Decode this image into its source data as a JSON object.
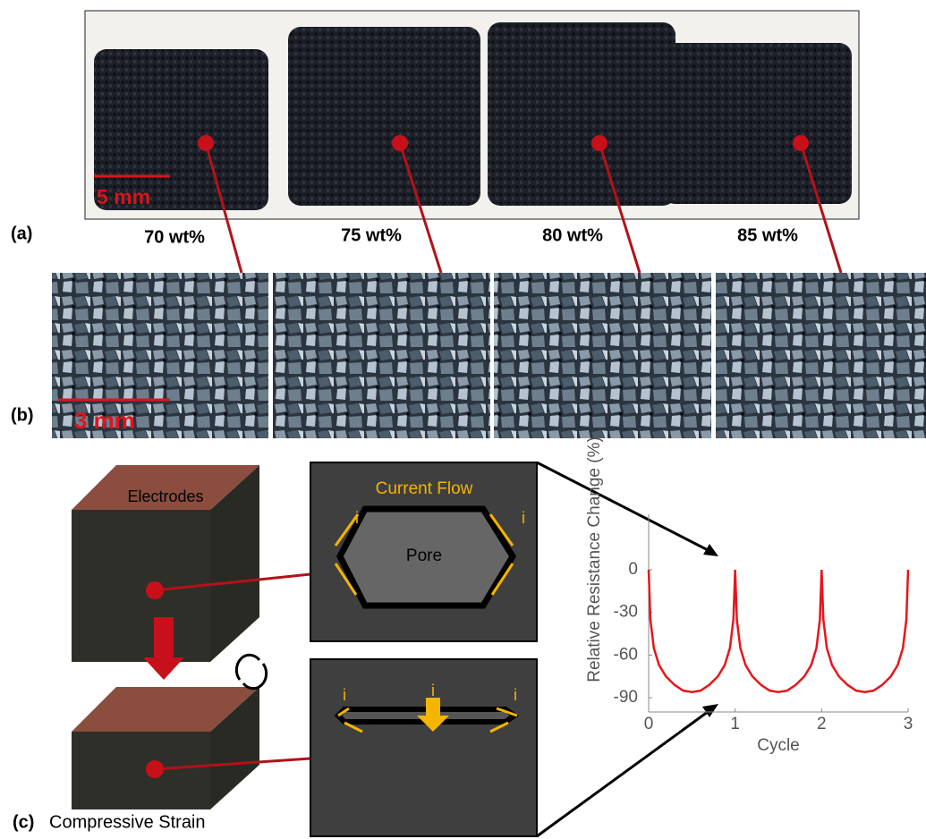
{
  "panel_a": {
    "label": "(a)",
    "scale_bar": "5 mm",
    "samples": [
      "70 wt%",
      "75 wt%",
      "80 wt%",
      "85 wt%"
    ]
  },
  "panel_b": {
    "label": "(b)",
    "scale_bar": "3 mm"
  },
  "panel_c": {
    "label": "(c)",
    "cube_top": "Electrodes",
    "cube_bottom": "Compressive Strain",
    "flow_title": "Current Flow",
    "current_symbol": "i",
    "pore": "Pore"
  },
  "chart_data": {
    "type": "line",
    "xlabel": "Cycle",
    "ylabel": "Relative Resistance Change (%)",
    "color": "#e8151b",
    "x": [
      0,
      0.02,
      0.06,
      0.12,
      0.2,
      0.3,
      0.4,
      0.5,
      0.6,
      0.7,
      0.8,
      0.88,
      0.94,
      0.98,
      1,
      1.02,
      1.06,
      1.12,
      1.2,
      1.3,
      1.4,
      1.5,
      1.6,
      1.7,
      1.8,
      1.88,
      1.94,
      1.98,
      2,
      2.02,
      2.06,
      2.12,
      2.2,
      2.3,
      2.4,
      2.5,
      2.6,
      2.7,
      2.8,
      2.88,
      2.94,
      2.98,
      3
    ],
    "values": [
      0,
      -35,
      -55,
      -67,
      -75,
      -81,
      -85,
      -86,
      -85,
      -81,
      -75,
      -67,
      -55,
      -35,
      0,
      -35,
      -55,
      -67,
      -75,
      -81,
      -85,
      -86,
      -85,
      -81,
      -75,
      -67,
      -55,
      -35,
      0,
      -35,
      -55,
      -67,
      -75,
      -81,
      -85,
      -86,
      -85,
      -81,
      -75,
      -67,
      -55,
      -35,
      0
    ],
    "xlim": [
      0,
      3
    ],
    "ylim": [
      -100,
      39
    ],
    "xticks": [
      0,
      1,
      2,
      3
    ],
    "yticks": [
      0,
      -30,
      -60,
      -90
    ]
  }
}
